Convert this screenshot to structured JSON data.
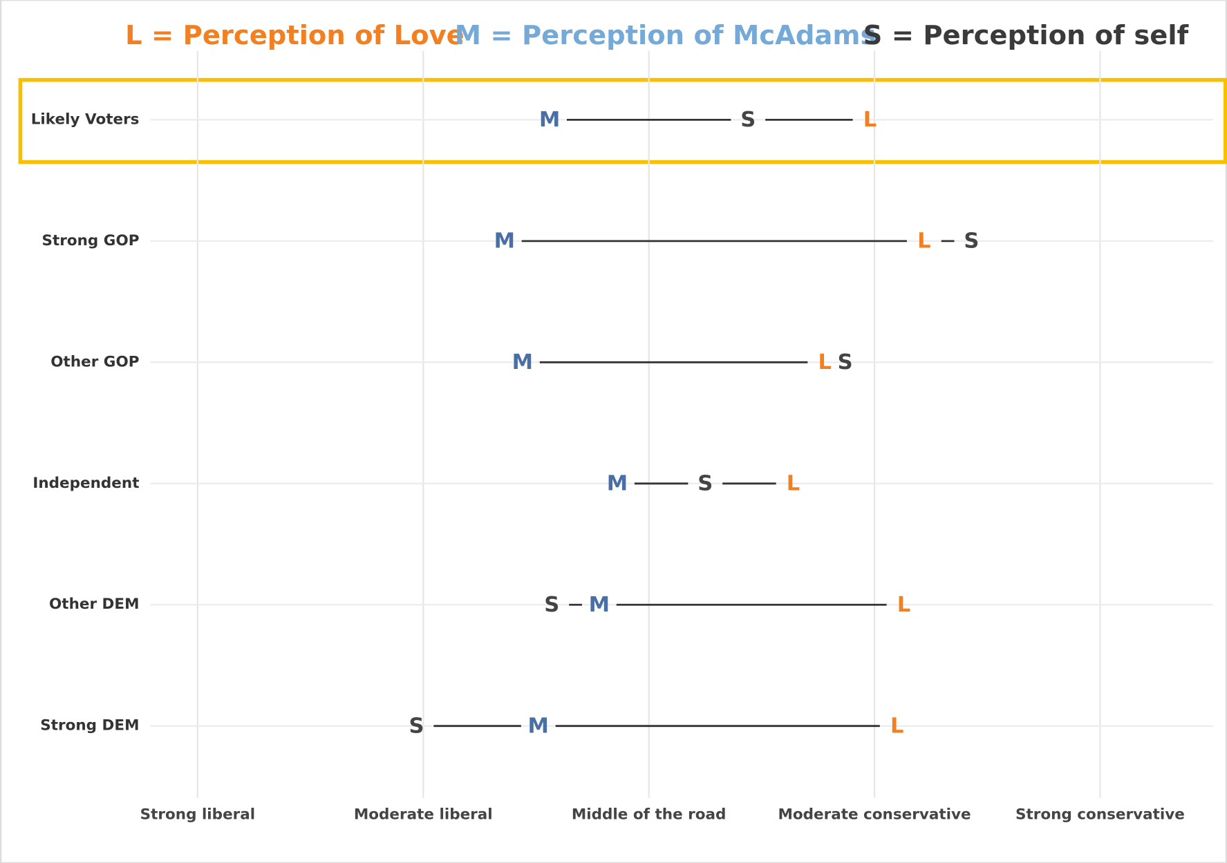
{
  "chart_data": {
    "type": "dot",
    "categories": [
      "Likely Voters",
      "Strong GOP",
      "Other GOP",
      "Independent",
      "Other DEM",
      "Strong DEM"
    ],
    "series": [
      {
        "name": "L = Perception of Love",
        "marker": "L",
        "color": "#f28020",
        "legend_color": "#f28020",
        "values": [
          3.98,
          4.22,
          3.78,
          3.64,
          4.13,
          4.1
        ]
      },
      {
        "name": "M = Perception of McAdams",
        "marker": "M",
        "color": "#4a6fa5",
        "legend_color": "#74a9d8",
        "values": [
          2.56,
          2.36,
          2.44,
          2.86,
          2.78,
          2.51
        ]
      },
      {
        "name": "S = Perception of self",
        "marker": "S",
        "color": "#444444",
        "legend_color": "#3a3a3a",
        "values": [
          3.44,
          4.43,
          3.87,
          3.25,
          2.57,
          1.97
        ]
      }
    ],
    "xlim": [
      0.79,
      5.5
    ],
    "xticks": [
      {
        "value": 1,
        "label": "Strong liberal"
      },
      {
        "value": 2,
        "label": "Moderate liberal"
      },
      {
        "value": 3,
        "label": "Middle of the road"
      },
      {
        "value": 4,
        "label": "Moderate conservative"
      },
      {
        "value": 5,
        "label": "Strong conservative"
      }
    ],
    "grid": true
  }
}
